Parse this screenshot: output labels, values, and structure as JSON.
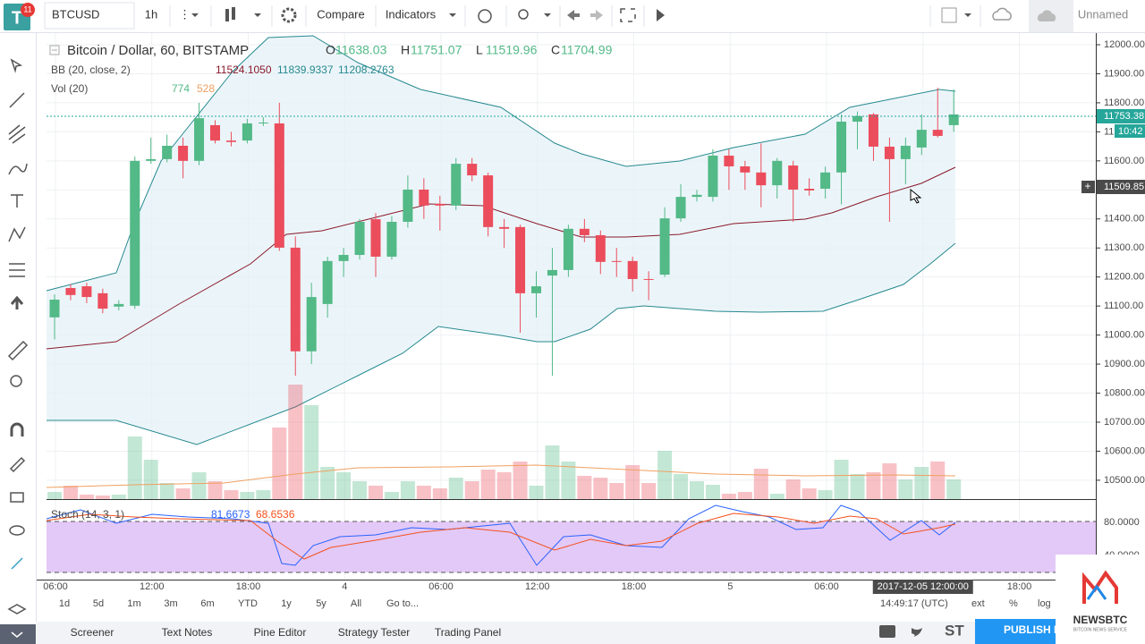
{
  "toolbar": {
    "symbol": "BTCUSD",
    "interval": "1h",
    "compare": "Compare",
    "indicators": "Indicators",
    "layout": "Unnamed",
    "badge": "11"
  },
  "legend": {
    "title": "Bitcoin / Dollar, 60, BITSTAMP",
    "ohlc": [
      [
        "O",
        "11638.03"
      ],
      [
        "H",
        "11751.07"
      ],
      [
        "L",
        "11519.96"
      ],
      [
        "C",
        "11704.99"
      ]
    ],
    "bb": {
      "name": "BB (20, close, 2)",
      "values": [
        "11524.1050",
        "11839.9337",
        "11208.2763"
      ]
    },
    "vol": {
      "name": "Vol (20)",
      "values": [
        "774",
        "528"
      ]
    },
    "stoch": {
      "name": "Stoch (14, 3, 1)",
      "values": [
        "81.6673",
        "68.6536"
      ]
    }
  },
  "price_chart": {
    "type": "candlestick",
    "up_color": "#53b987",
    "down_color": "#eb4d5c",
    "ylim": [
      10435,
      12037
    ],
    "yticks": [
      {
        "value": 12000,
        "label": "12000.00"
      },
      {
        "value": 11900,
        "label": "11900.00"
      },
      {
        "value": 11800,
        "label": "11800.00"
      },
      {
        "value": 11700,
        "label": "11700.00"
      },
      {
        "value": 11600,
        "label": "11600.00"
      },
      {
        "value": 11500,
        "label": "11500.00"
      },
      {
        "value": 11400,
        "label": "11400.00"
      },
      {
        "value": 11300,
        "label": "11300.00"
      },
      {
        "value": 11200,
        "label": "11200.00"
      },
      {
        "value": 11100,
        "label": "11100.00"
      },
      {
        "value": 11000,
        "label": "11000.00"
      },
      {
        "value": 10900,
        "label": "10900.00"
      },
      {
        "value": 10800,
        "label": "10800.00"
      },
      {
        "value": 10700,
        "label": "10700.00"
      },
      {
        "value": 10600,
        "label": "10600.00"
      },
      {
        "value": 10500,
        "label": "10500.00"
      }
    ],
    "candles": [
      [
        11061,
        11140,
        10985,
        11122
      ],
      [
        11162,
        11175,
        11120,
        11138
      ],
      [
        11168,
        11180,
        11110,
        11131
      ],
      [
        11144,
        11160,
        11075,
        11091
      ],
      [
        11098,
        11120,
        11085,
        11107
      ],
      [
        11101,
        11615,
        11090,
        11600
      ],
      [
        11600,
        11680,
        11590,
        11606
      ],
      [
        11606,
        11690,
        11595,
        11652
      ],
      [
        11652,
        11680,
        11540,
        11600
      ],
      [
        11600,
        11800,
        11585,
        11747
      ],
      [
        11723,
        11740,
        11660,
        11670
      ],
      [
        11670,
        11700,
        11650,
        11665
      ],
      [
        11670,
        11745,
        11660,
        11729
      ],
      [
        11729,
        11750,
        11720,
        11732
      ],
      [
        11729,
        11800,
        11290,
        11301
      ],
      [
        11301,
        11340,
        10860,
        10944
      ],
      [
        10944,
        11180,
        10900,
        11131
      ],
      [
        11107,
        11270,
        11060,
        11255
      ],
      [
        11255,
        11300,
        11200,
        11276
      ],
      [
        11276,
        11400,
        11260,
        11390
      ],
      [
        11399,
        11420,
        11200,
        11270
      ],
      [
        11270,
        11410,
        11260,
        11390
      ],
      [
        11390,
        11550,
        11370,
        11501
      ],
      [
        11501,
        11540,
        11400,
        11446
      ],
      [
        11452,
        11480,
        11360,
        11446
      ],
      [
        11446,
        11610,
        11430,
        11590
      ],
      [
        11590,
        11610,
        11530,
        11550
      ],
      [
        11550,
        11560,
        11340,
        11372
      ],
      [
        11372,
        11400,
        11300,
        11366
      ],
      [
        11372,
        11380,
        11008,
        11144
      ],
      [
        11144,
        11220,
        11060,
        11168
      ],
      [
        11205,
        11300,
        10860,
        11224
      ],
      [
        11224,
        11380,
        11200,
        11366
      ],
      [
        11366,
        11400,
        11320,
        11344
      ],
      [
        11344,
        11360,
        11210,
        11252
      ],
      [
        11255,
        11300,
        11200,
        11252
      ],
      [
        11255,
        11270,
        11150,
        11193
      ],
      [
        11193,
        11220,
        11120,
        11190
      ],
      [
        11208,
        11440,
        11200,
        11402
      ],
      [
        11402,
        11520,
        11390,
        11476
      ],
      [
        11476,
        11500,
        11460,
        11483
      ],
      [
        11476,
        11640,
        11460,
        11618
      ],
      [
        11618,
        11640,
        11500,
        11581
      ],
      [
        11581,
        11600,
        11500,
        11560
      ],
      [
        11560,
        11660,
        11440,
        11516
      ],
      [
        11516,
        11610,
        11470,
        11600
      ],
      [
        11584,
        11600,
        11390,
        11501
      ],
      [
        11504,
        11540,
        11480,
        11498
      ],
      [
        11504,
        11580,
        11470,
        11560
      ],
      [
        11560,
        11760,
        11450,
        11735
      ],
      [
        11735,
        11770,
        11640,
        11754
      ],
      [
        11760,
        11765,
        11600,
        11649
      ],
      [
        11649,
        11680,
        11390,
        11606
      ],
      [
        11606,
        11680,
        11520,
        11652
      ],
      [
        11646,
        11760,
        11620,
        11707
      ],
      [
        11707,
        11852,
        11680,
        11686
      ],
      [
        11723,
        11846,
        11700,
        11760
      ]
    ],
    "volume_lim": [
      0,
      18200
    ],
    "volume": [
      280,
      525,
      175,
      140,
      175,
      2450,
      1540,
      630,
      420,
      1050,
      700,
      350,
      280,
      350,
      2800,
      4480,
      3675,
      1260,
      1050,
      700,
      525,
      280,
      700,
      525,
      420,
      840,
      700,
      1155,
      1050,
      1470,
      525,
      2100,
      1470,
      910,
      840,
      630,
      1330,
      630,
      1890,
      980,
      700,
      560,
      210,
      280,
      1190,
      210,
      770,
      420,
      350,
      1540,
      980,
      1050,
      1400,
      770,
      1260,
      1470,
      770
    ]
  },
  "price_tags": [
    "11753.38",
    "10:42",
    "11509.85"
  ],
  "stoch_axis": [
    "80.0000",
    "40.0000"
  ],
  "time_axis": [
    "06:00",
    "12:00",
    "18:00",
    "4",
    "06:00",
    "12:00",
    "18:00",
    "5",
    "06:00",
    "2017-12-05 12:00:00",
    "18:00"
  ],
  "ranges": [
    "1d",
    "5d",
    "1m",
    "3m",
    "6m",
    "YTD",
    "1y",
    "5y",
    "All"
  ],
  "goto": "Go to...",
  "clock": "14:49:17 (UTC)",
  "axis_options": [
    "ext",
    "%",
    "log"
  ],
  "tabs": [
    "Screener",
    "Text Notes",
    "Pine Editor",
    "Strategy Tester",
    "Trading Panel"
  ],
  "publish": "PUBLISH ID",
  "st": "ST",
  "logo": {
    "name": "NEWSBTC",
    "tagline": "BITCOIN NEWS SERVICE"
  }
}
